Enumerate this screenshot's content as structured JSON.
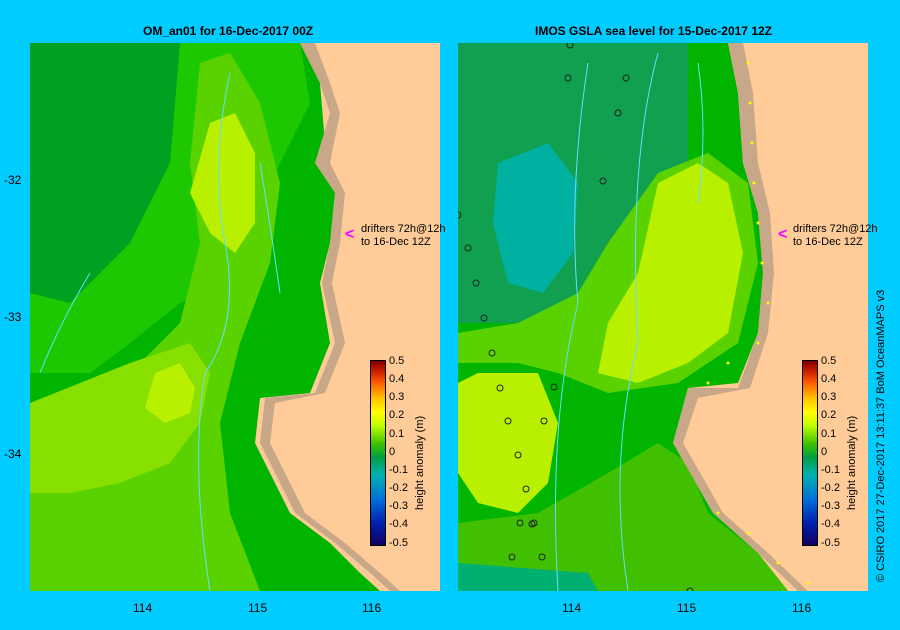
{
  "left_panel": {
    "title": "OM_an01  for 16-Dec-2017 00Z",
    "annotation_line1": "drifters 72h@12h",
    "annotation_line2": "to 16-Dec 12Z"
  },
  "right_panel": {
    "title": "IMOS GSLA sea level  for 15-Dec-2017 12Z",
    "annotation_line1": "drifters 72h@12h",
    "annotation_line2": "to 16-Dec 12Z"
  },
  "axes": {
    "y_ticks": [
      "-32",
      "-33",
      "-34"
    ],
    "x_ticks": [
      "114",
      "115",
      "116"
    ]
  },
  "colorbar": {
    "title": "height anomaly (m)",
    "labels": [
      "0.5",
      "0.4",
      "0.3",
      "0.2",
      "0.1",
      "0",
      "-0.1",
      "-0.2",
      "-0.3",
      "-0.4",
      "-0.5"
    ]
  },
  "credit": "© CSIRO 2017   27-Dec-2017 13:11:37 BoM OceanMAPS v3",
  "colors": {
    "background": "#00ccff",
    "land": "#ffcc99",
    "coast": "#c8a888",
    "drifter_arrow": "#ff00ff"
  }
}
